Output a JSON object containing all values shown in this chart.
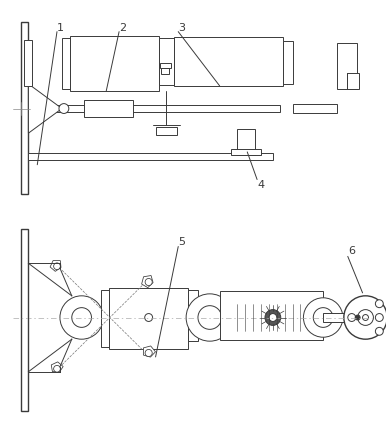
{
  "bg_color": "#ffffff",
  "line_color": "#3a3a3a",
  "label_color": "#222222",
  "figsize": [
    3.89,
    4.31
  ],
  "dpi": 100
}
